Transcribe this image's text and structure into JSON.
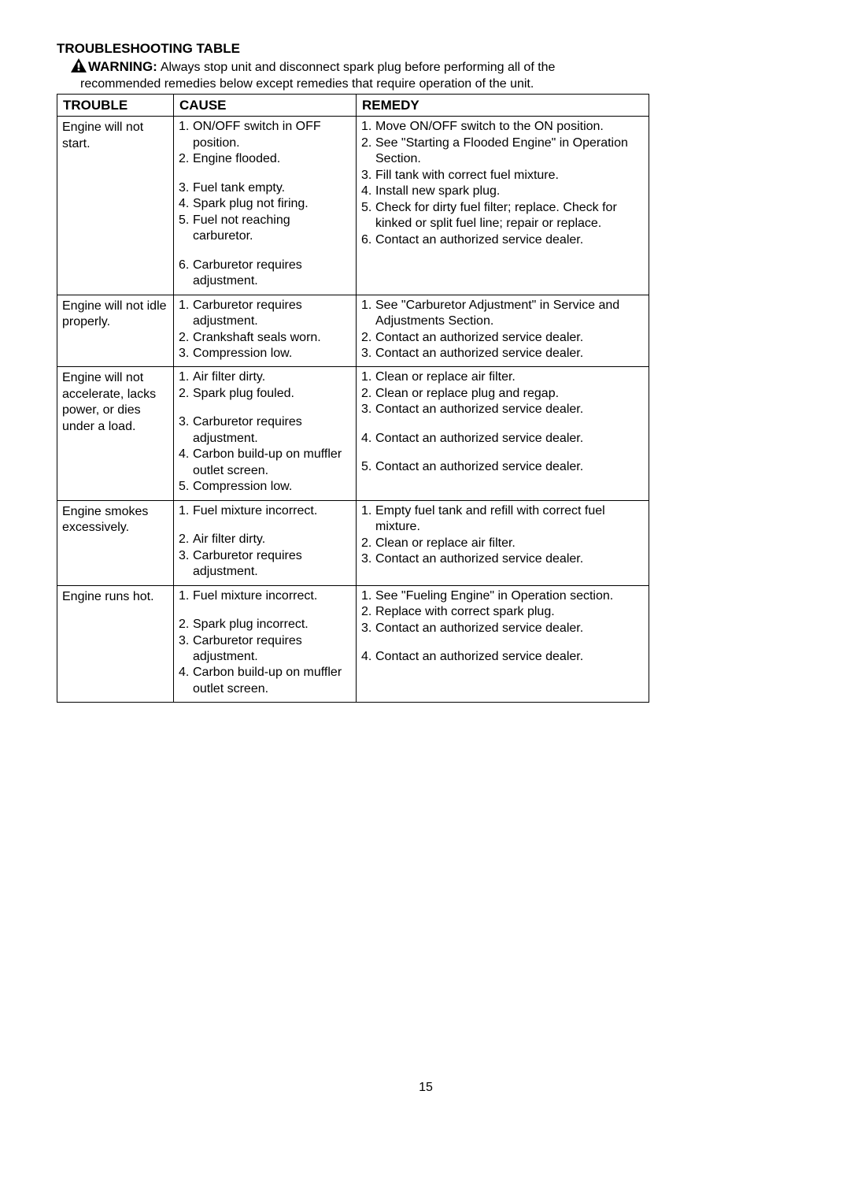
{
  "title": "TROUBLESHOOTING TABLE",
  "warning": {
    "label": "WARNING:",
    "text1": "Always stop unit and disconnect spark plug before performing all of the",
    "text2": "recommended remedies below except remedies that require operation of the unit."
  },
  "headers": {
    "trouble": "TROUBLE",
    "cause": "CAUSE",
    "remedy": "REMEDY"
  },
  "rows": [
    {
      "trouble": "Engine will not start.",
      "causes": [
        {
          "n": "1.",
          "t": "ON/OFF switch in OFF position.",
          "gap": false,
          "indent": 1
        },
        {
          "n": "2.",
          "t": "Engine flooded.",
          "gap": false
        },
        {
          "n": "",
          "t": "",
          "gap": true
        },
        {
          "n": "3.",
          "t": "Fuel tank empty.",
          "gap": false
        },
        {
          "n": "4.",
          "t": "Spark plug not firing.",
          "gap": false
        },
        {
          "n": "5.",
          "t": "Fuel not reaching carburetor.",
          "gap": false
        },
        {
          "n": "",
          "t": "",
          "gap": true
        },
        {
          "n": "6.",
          "t": "Carburetor requires adjustment.",
          "gap": false
        }
      ],
      "remedies": [
        {
          "n": "1.",
          "t": "Move ON/OFF switch to the ON position."
        },
        {
          "n": "2.",
          "t": "See \"Starting a Flooded Engine\" in Operation Section."
        },
        {
          "n": "3.",
          "t": "Fill tank with correct fuel mixture."
        },
        {
          "n": "4.",
          "t": "Install new spark plug."
        },
        {
          "n": "5.",
          "t": "Check for dirty fuel filter; replace. Check for kinked or split fuel line; repair or replace."
        },
        {
          "n": "6.",
          "t": "Contact an authorized service dealer."
        }
      ]
    },
    {
      "trouble": "Engine will not idle properly.",
      "causes": [
        {
          "n": "1.",
          "t": "Carburetor requires adjustment."
        },
        {
          "n": "2.",
          "t": "Crankshaft seals worn."
        },
        {
          "n": "3.",
          "t": "Compression low."
        }
      ],
      "remedies": [
        {
          "n": "1.",
          "t": "See \"Carburetor Adjustment\" in Service and Adjustments Section."
        },
        {
          "n": "2.",
          "t": "Contact an authorized service dealer."
        },
        {
          "n": "3.",
          "t": "Contact an authorized service dealer."
        }
      ]
    },
    {
      "trouble": "Engine will not accelerate, lacks power, or dies under a load.",
      "causes": [
        {
          "n": "1.",
          "t": " Air filter dirty."
        },
        {
          "n": "2.",
          "t": "Spark plug fouled."
        },
        {
          "n": "",
          "t": "",
          "gap": true
        },
        {
          "n": "3.",
          "t": "Carburetor requires adjustment."
        },
        {
          "n": "4.",
          "t": "Carbon build-up on muffler outlet screen."
        },
        {
          "n": "5.",
          "t": "Compression low."
        }
      ],
      "remedies": [
        {
          "n": "1.",
          "t": "Clean or replace air filter."
        },
        {
          "n": "2.",
          "t": "Clean or replace plug and regap."
        },
        {
          "n": "3.",
          "t": "Contact an authorized service dealer."
        },
        {
          "n": "",
          "t": "",
          "gap": true
        },
        {
          "n": "4.",
          "t": "Contact an authorized service dealer."
        },
        {
          "n": "",
          "t": "",
          "gap": true
        },
        {
          "n": "5.",
          "t": "Contact an authorized service dealer."
        }
      ]
    },
    {
      "trouble": "Engine smokes excessively.",
      "causes": [
        {
          "n": "1.",
          "t": "Fuel mixture incorrect."
        },
        {
          "n": "",
          "t": "",
          "gap": true
        },
        {
          "n": "2.",
          "t": " Air filter dirty."
        },
        {
          "n": "3.",
          "t": "Carburetor requires adjustment."
        }
      ],
      "remedies": [
        {
          "n": "1.",
          "t": "Empty fuel tank and refill with correct fuel mixture."
        },
        {
          "n": "2.",
          "t": "Clean or replace air filter."
        },
        {
          "n": "3.",
          "t": "Contact an authorized service dealer."
        }
      ]
    },
    {
      "trouble": "Engine runs hot.",
      "causes": [
        {
          "n": "1.",
          "t": "Fuel mixture incorrect."
        },
        {
          "n": "",
          "t": "",
          "gap": true
        },
        {
          "n": "2.",
          "t": "Spark plug incorrect."
        },
        {
          "n": "3.",
          "t": "Carburetor requires adjustment."
        },
        {
          "n": "4.",
          "t": "Carbon build-up on muffler outlet screen."
        }
      ],
      "remedies": [
        {
          "n": "1.",
          "t": "See \"Fueling Engine\" in Operation section."
        },
        {
          "n": "2.",
          "t": "Replace with correct spark plug."
        },
        {
          "n": "3.",
          "t": "Contact an authorized service dealer."
        },
        {
          "n": "",
          "t": "",
          "gap": true
        },
        {
          "n": "4.",
          "t": "Contact an authorized service dealer."
        }
      ]
    }
  ],
  "pageNumber": "15",
  "colors": {
    "text": "#000000",
    "background": "#ffffff",
    "border": "#000000"
  }
}
